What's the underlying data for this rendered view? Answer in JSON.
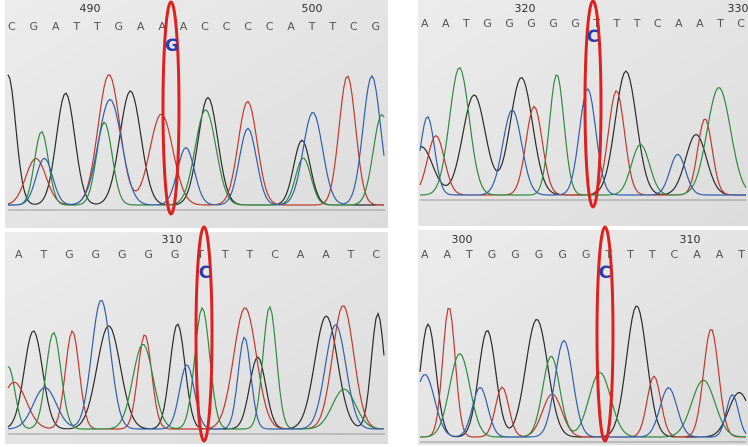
{
  "panels": [
    {
      "numbers": [
        "490",
        "500"
      ],
      "sequence": "C G A T T G A A A C C C C A T T C G",
      "call": "G"
    },
    {
      "numbers": [
        "310"
      ],
      "sequence": "A T G G G G G T T T C A A T C",
      "call": "C"
    },
    {
      "numbers": [
        "320",
        "330"
      ],
      "sequence": "A A T G G G G G T T T C A A T C",
      "call": "C"
    },
    {
      "numbers": [
        "300",
        "310"
      ],
      "sequence": "A A T G G G G G T T T C A A T",
      "call": "C"
    }
  ]
}
